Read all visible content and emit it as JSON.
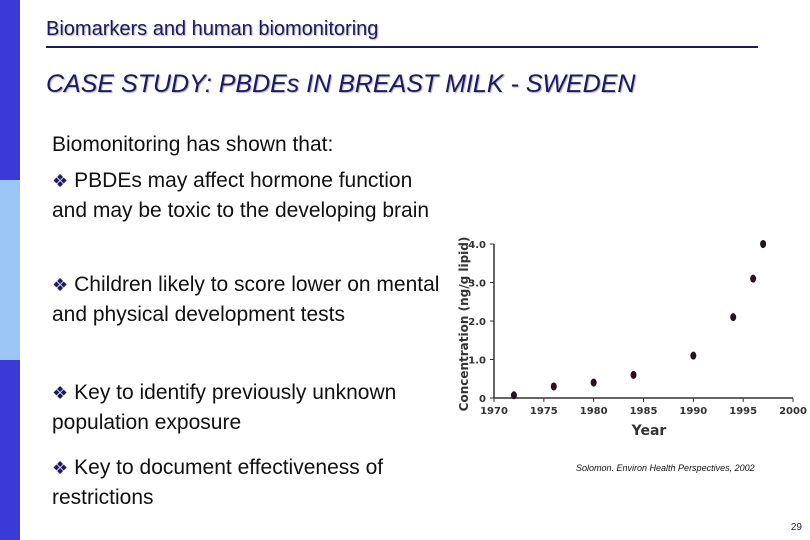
{
  "header": {
    "title": "Biomarkers and human biomonitoring"
  },
  "slide": {
    "case_title": "CASE STUDY: PBDEs IN BREAST MILK - SWEDEN",
    "lead": "Biomonitoring has shown that:",
    "bullet_icon": "diamond-bullet-icon",
    "bullets": [
      "PBDEs may affect hormone function and may be toxic to the developing brain",
      "Children likely to score lower on mental and physical development tests",
      "Key to identify previously unknown population exposure",
      "Key to document effectiveness of restrictions"
    ],
    "citation": "Solomon.  Environ Health Perspectives, 2002",
    "page_number": "29"
  },
  "colors": {
    "navy": "#1a1a66",
    "bar_dark": "#3a3ad8",
    "bar_light": "#9cc6f5"
  },
  "chart_data": {
    "type": "scatter",
    "title": "",
    "xlabel": "Year",
    "ylabel": "Concentration (ng/g lipid)",
    "xlim": [
      1970,
      2000
    ],
    "ylim": [
      0,
      4.0
    ],
    "x_ticks": [
      1970,
      1975,
      1980,
      1985,
      1990,
      1995,
      2000
    ],
    "y_ticks": [
      0,
      1.0,
      2.0,
      3.0,
      4.0
    ],
    "x_tick_labels": [
      "1970",
      "1975",
      "1980",
      "1985",
      "1990",
      "1995",
      "2000"
    ],
    "y_tick_labels": [
      "0",
      "1.0",
      "2.0",
      "3.0",
      "4.0"
    ],
    "points": [
      {
        "x": 1972,
        "y": 0.07
      },
      {
        "x": 1976,
        "y": 0.3
      },
      {
        "x": 1980,
        "y": 0.4
      },
      {
        "x": 1984,
        "y": 0.6
      },
      {
        "x": 1990,
        "y": 1.1
      },
      {
        "x": 1994,
        "y": 2.1
      },
      {
        "x": 1996,
        "y": 3.1
      },
      {
        "x": 1997,
        "y": 4.0
      }
    ]
  }
}
